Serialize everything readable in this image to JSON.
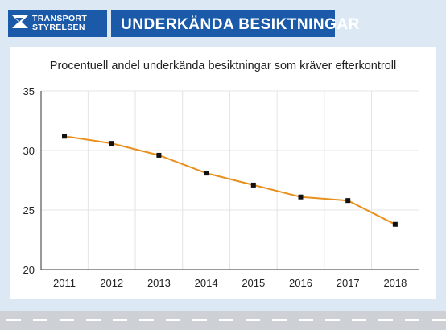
{
  "header": {
    "logo_line1": "TRANSPORT",
    "logo_line2": "STYRELSEN",
    "title": "UNDERKÄNDA BESIKTNINGAR"
  },
  "colors": {
    "brand_blue": "#1b5aa8",
    "background": "#dce8f4",
    "line": "#e8901c",
    "marker": "#111111",
    "grid": "#e4e4e4"
  },
  "chart_data": {
    "type": "line",
    "title": "Procentuell andel underkända besiktningar som kräver efterkontroll",
    "xlabel": "",
    "ylabel": "",
    "categories": [
      "2011",
      "2012",
      "2013",
      "2014",
      "2015",
      "2016",
      "2017",
      "2018"
    ],
    "series": [
      {
        "values": [
          31.2,
          30.6,
          29.6,
          28.1,
          27.1,
          26.1,
          25.8,
          23.8
        ]
      }
    ],
    "ylim": [
      20,
      35
    ],
    "yticks": [
      20,
      25,
      30,
      35
    ],
    "grid": true,
    "legend": "none"
  }
}
